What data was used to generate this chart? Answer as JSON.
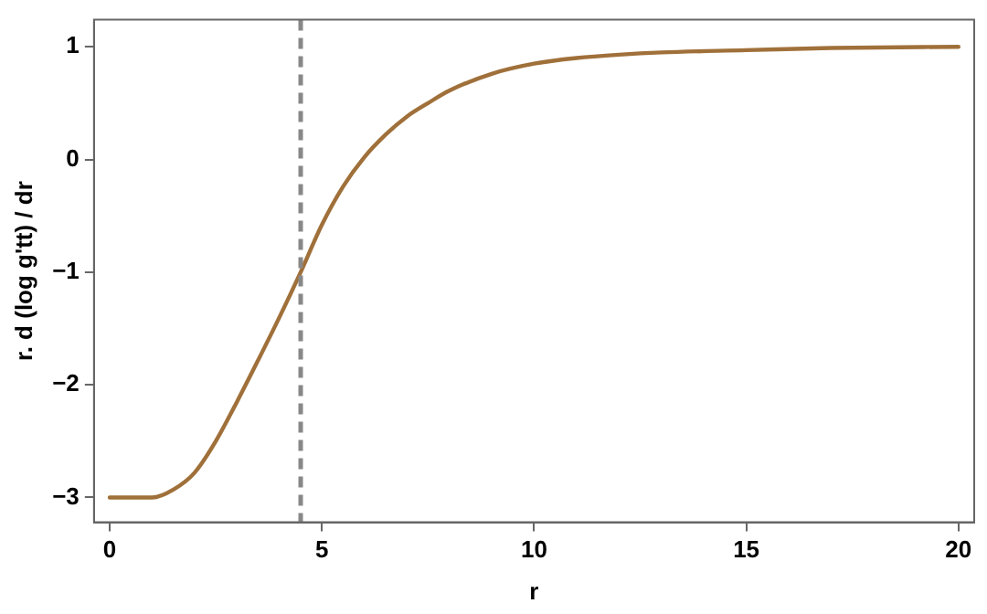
{
  "chart_data": {
    "type": "line",
    "xlabel": "r",
    "ylabel": "r. d (log g'tt) / dr",
    "x": [
      0,
      1,
      1.5,
      2,
      2.5,
      3,
      3.5,
      4,
      4.5,
      5,
      5.5,
      6,
      6.5,
      7,
      7.5,
      8,
      9,
      10,
      11,
      12,
      13,
      15,
      17,
      20
    ],
    "series": [
      {
        "color": "#a0703a",
        "values": [
          -3,
          -3,
          -2.93,
          -2.78,
          -2.5,
          -2.15,
          -1.78,
          -1.4,
          -1,
          -0.58,
          -0.24,
          0.02,
          0.22,
          0.38,
          0.5,
          0.61,
          0.76,
          0.85,
          0.9,
          0.93,
          0.95,
          0.97,
          0.99,
          1
        ]
      }
    ],
    "xlim": [
      -0.37,
      20.37
    ],
    "xticks": [
      0,
      5,
      10,
      15,
      20
    ],
    "ylim": [
      -3.22,
      1.24
    ],
    "yticks": [
      -3,
      -2,
      -1,
      0,
      1
    ],
    "ref_lines": [
      {
        "axis": "x",
        "value": 4.5,
        "color": "#888888",
        "line_style": "dashed"
      }
    ],
    "grid": false,
    "legend": false,
    "marker": "none",
    "line_style": "solid"
  }
}
